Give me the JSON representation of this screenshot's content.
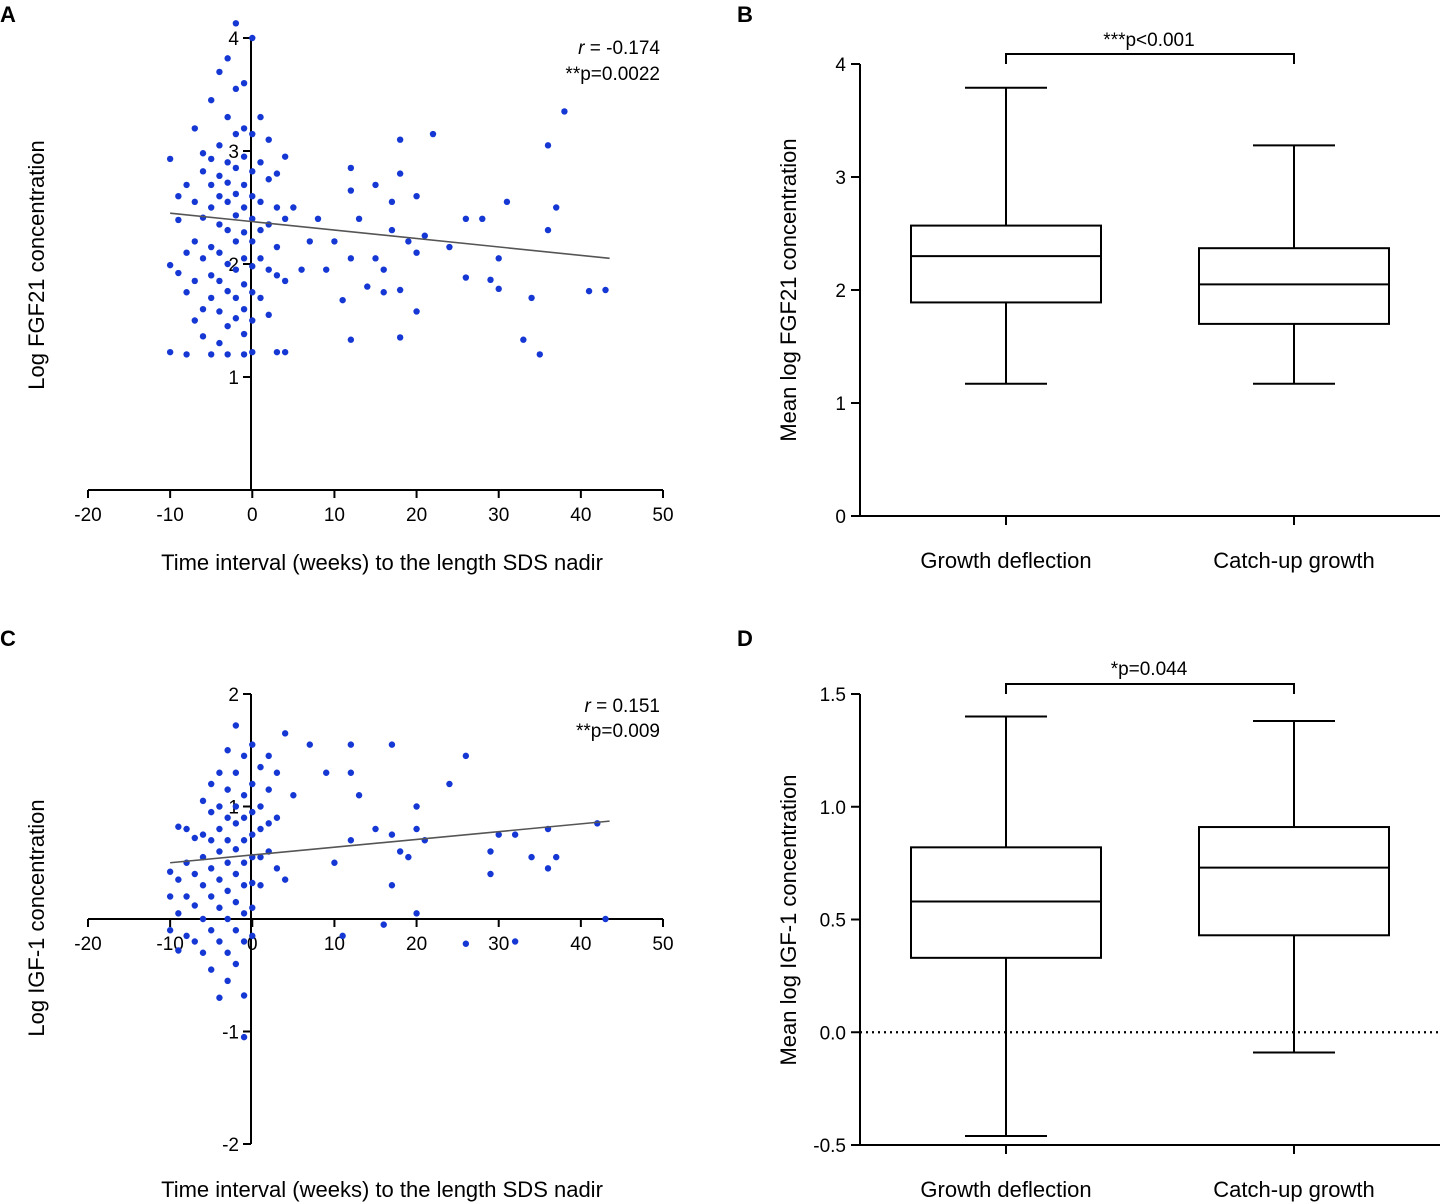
{
  "chart_data": [
    {
      "panel": "A",
      "type": "scatter",
      "xlabel": "Time interval (weeks) to the length SDS nadir",
      "ylabel": "Log FGF21 concentration",
      "xlim": [
        -20,
        50
      ],
      "ylim": [
        0,
        4
      ],
      "xticks": [
        "-20",
        "-10",
        "0",
        "10",
        "20",
        "30",
        "40",
        "50"
      ],
      "yticks": [
        "1",
        "2",
        "3",
        "4"
      ],
      "stat_r_symbol": "r",
      "stat_r_value": " = -0.174",
      "stat_p": "**p=0.0022",
      "regression": {
        "x1": -10,
        "y1": 2.45,
        "x2": 43.5,
        "y2": 2.05
      },
      "points": [
        [
          -10,
          2.93
        ],
        [
          -10,
          1.99
        ],
        [
          -10,
          1.22
        ],
        [
          -9,
          2.6
        ],
        [
          -9,
          2.39
        ],
        [
          -9,
          1.92
        ],
        [
          -8,
          2.7
        ],
        [
          -8,
          2.1
        ],
        [
          -8,
          1.75
        ],
        [
          -8,
          1.2
        ],
        [
          -7,
          3.2
        ],
        [
          -7,
          2.55
        ],
        [
          -7,
          2.2
        ],
        [
          -7,
          1.85
        ],
        [
          -7,
          1.5
        ],
        [
          -6,
          2.98
        ],
        [
          -6,
          2.82
        ],
        [
          -6,
          2.41
        ],
        [
          -6,
          2.05
        ],
        [
          -6,
          1.6
        ],
        [
          -6,
          1.36
        ],
        [
          -5,
          3.45
        ],
        [
          -5,
          2.93
        ],
        [
          -5,
          2.7
        ],
        [
          -5,
          2.5
        ],
        [
          -5,
          2.15
        ],
        [
          -5,
          1.9
        ],
        [
          -5,
          1.7
        ],
        [
          -5,
          1.2
        ],
        [
          -4,
          3.7
        ],
        [
          -4,
          3.05
        ],
        [
          -4,
          2.78
        ],
        [
          -4,
          2.6
        ],
        [
          -4,
          2.35
        ],
        [
          -4,
          2.1
        ],
        [
          -4,
          1.85
        ],
        [
          -4,
          1.58
        ],
        [
          -4,
          1.3
        ],
        [
          -3,
          3.82
        ],
        [
          -3,
          3.3
        ],
        [
          -3,
          2.9
        ],
        [
          -3,
          2.72
        ],
        [
          -3,
          2.55
        ],
        [
          -3,
          2.3
        ],
        [
          -3,
          2.0
        ],
        [
          -3,
          1.76
        ],
        [
          -3,
          1.45
        ],
        [
          -3,
          1.2
        ],
        [
          -2,
          4.13
        ],
        [
          -2,
          3.55
        ],
        [
          -2,
          3.15
        ],
        [
          -2,
          2.85
        ],
        [
          -2,
          2.62
        ],
        [
          -2,
          2.43
        ],
        [
          -2,
          2.2
        ],
        [
          -2,
          1.95
        ],
        [
          -2,
          1.7
        ],
        [
          -2,
          1.52
        ],
        [
          -1,
          3.6
        ],
        [
          -1,
          3.2
        ],
        [
          -1,
          2.95
        ],
        [
          -1,
          2.7
        ],
        [
          -1,
          2.5
        ],
        [
          -1,
          2.28
        ],
        [
          -1,
          2.05
        ],
        [
          -1,
          1.82
        ],
        [
          -1,
          1.6
        ],
        [
          -1,
          1.38
        ],
        [
          -1,
          1.2
        ],
        [
          0,
          4.0
        ],
        [
          0,
          3.15
        ],
        [
          0,
          2.82
        ],
        [
          0,
          2.6
        ],
        [
          0,
          2.4
        ],
        [
          0,
          2.2
        ],
        [
          0,
          1.98
        ],
        [
          0,
          1.75
        ],
        [
          0,
          1.5
        ],
        [
          0,
          1.22
        ],
        [
          1,
          3.3
        ],
        [
          1,
          2.9
        ],
        [
          1,
          2.55
        ],
        [
          1,
          2.3
        ],
        [
          1,
          2.05
        ],
        [
          1,
          1.7
        ],
        [
          2,
          3.1
        ],
        [
          2,
          2.75
        ],
        [
          2,
          2.35
        ],
        [
          2,
          1.95
        ],
        [
          2,
          1.55
        ],
        [
          3,
          2.8
        ],
        [
          3,
          2.5
        ],
        [
          3,
          2.15
        ],
        [
          3,
          1.9
        ],
        [
          3,
          1.22
        ],
        [
          4,
          2.95
        ],
        [
          4,
          2.4
        ],
        [
          4,
          1.85
        ],
        [
          4,
          1.22
        ],
        [
          5,
          2.5
        ],
        [
          6,
          1.95
        ],
        [
          7,
          2.2
        ],
        [
          8,
          2.4
        ],
        [
          9,
          1.95
        ],
        [
          10,
          2.2
        ],
        [
          11,
          1.68
        ],
        [
          12,
          2.85
        ],
        [
          12,
          2.65
        ],
        [
          12,
          2.05
        ],
        [
          12,
          1.33
        ],
        [
          13,
          2.4
        ],
        [
          14,
          1.8
        ],
        [
          15,
          2.7
        ],
        [
          15,
          2.05
        ],
        [
          16,
          1.95
        ],
        [
          16,
          1.75
        ],
        [
          17,
          2.55
        ],
        [
          17,
          2.3
        ],
        [
          18,
          3.1
        ],
        [
          18,
          2.8
        ],
        [
          18,
          1.77
        ],
        [
          18,
          1.35
        ],
        [
          19,
          2.2
        ],
        [
          20,
          2.6
        ],
        [
          20,
          2.1
        ],
        [
          20,
          1.58
        ],
        [
          21,
          2.25
        ],
        [
          22,
          3.15
        ],
        [
          24,
          2.15
        ],
        [
          26,
          2.4
        ],
        [
          26,
          1.88
        ],
        [
          28,
          2.4
        ],
        [
          29,
          1.86
        ],
        [
          30,
          2.05
        ],
        [
          30,
          1.78
        ],
        [
          31,
          2.55
        ],
        [
          33,
          1.33
        ],
        [
          34,
          1.7
        ],
        [
          35,
          1.2
        ],
        [
          36,
          2.3
        ],
        [
          36,
          3.05
        ],
        [
          37,
          2.5
        ],
        [
          38,
          3.35
        ],
        [
          41,
          1.76
        ],
        [
          43,
          1.77
        ]
      ]
    },
    {
      "panel": "B",
      "type": "box",
      "ylabel": "Mean log FGF21 concentration",
      "ylim": [
        0,
        4
      ],
      "yticks": [
        "0",
        "1",
        "2",
        "3",
        "4"
      ],
      "categories": [
        "Growth deflection",
        "Catch-up growth"
      ],
      "boxes": [
        {
          "min": 1.17,
          "q1": 1.89,
          "median": 2.3,
          "q3": 2.57,
          "max": 3.79
        },
        {
          "min": 1.17,
          "q1": 1.7,
          "median": 2.05,
          "q3": 2.37,
          "max": 3.28
        }
      ],
      "significance": "***p<0.001",
      "zero_line": false
    },
    {
      "panel": "C",
      "type": "scatter",
      "xlabel": "Time interval (weeks) to the length SDS nadir",
      "ylabel": "Log IGF-1 concentration",
      "xlim": [
        -20,
        50
      ],
      "ylim": [
        -2,
        2
      ],
      "xticks": [
        "-20",
        "-10",
        "0",
        "10",
        "20",
        "30",
        "40",
        "50"
      ],
      "yticks": [
        "-2",
        "-1",
        "1",
        "2"
      ],
      "stat_r_symbol": "r",
      "stat_r_value": " = 0.151",
      "stat_p": "**p=0.009",
      "regression": {
        "x1": -10,
        "y1": 0.5,
        "x2": 43.5,
        "y2": 0.87
      },
      "points": [
        [
          -10,
          0.42
        ],
        [
          -10,
          0.2
        ],
        [
          -10,
          -0.1
        ],
        [
          -9,
          0.82
        ],
        [
          -9,
          0.35
        ],
        [
          -9,
          0.05
        ],
        [
          -9,
          -0.28
        ],
        [
          -8,
          0.8
        ],
        [
          -8,
          0.5
        ],
        [
          -8,
          0.2
        ],
        [
          -8,
          -0.15
        ],
        [
          -7,
          0.72
        ],
        [
          -7,
          0.4
        ],
        [
          -7,
          0.12
        ],
        [
          -7,
          -0.2
        ],
        [
          -6,
          1.05
        ],
        [
          -6,
          0.75
        ],
        [
          -6,
          0.55
        ],
        [
          -6,
          0.3
        ],
        [
          -6,
          0.0
        ],
        [
          -6,
          -0.3
        ],
        [
          -5,
          1.2
        ],
        [
          -5,
          0.95
        ],
        [
          -5,
          0.7
        ],
        [
          -5,
          0.45
        ],
        [
          -5,
          0.2
        ],
        [
          -5,
          -0.1
        ],
        [
          -5,
          -0.45
        ],
        [
          -4,
          1.3
        ],
        [
          -4,
          1.0
        ],
        [
          -4,
          0.8
        ],
        [
          -4,
          0.6
        ],
        [
          -4,
          0.35
        ],
        [
          -4,
          0.1
        ],
        [
          -4,
          -0.2
        ],
        [
          -4,
          -0.7
        ],
        [
          -3,
          1.5
        ],
        [
          -3,
          1.15
        ],
        [
          -3,
          0.9
        ],
        [
          -3,
          0.7
        ],
        [
          -3,
          0.5
        ],
        [
          -3,
          0.25
        ],
        [
          -3,
          0.0
        ],
        [
          -3,
          -0.3
        ],
        [
          -3,
          -0.55
        ],
        [
          -2,
          1.72
        ],
        [
          -2,
          1.3
        ],
        [
          -2,
          1.0
        ],
        [
          -2,
          0.85
        ],
        [
          -2,
          0.62
        ],
        [
          -2,
          0.4
        ],
        [
          -2,
          0.15
        ],
        [
          -2,
          -0.1
        ],
        [
          -2,
          -0.4
        ],
        [
          -1,
          1.45
        ],
        [
          -1,
          1.1
        ],
        [
          -1,
          0.9
        ],
        [
          -1,
          0.7
        ],
        [
          -1,
          0.5
        ],
        [
          -1,
          0.3
        ],
        [
          -1,
          0.05
        ],
        [
          -1,
          -0.2
        ],
        [
          -1,
          -0.68
        ],
        [
          -1,
          -1.05
        ],
        [
          0,
          1.55
        ],
        [
          0,
          1.2
        ],
        [
          0,
          0.95
        ],
        [
          0,
          0.75
        ],
        [
          0,
          0.55
        ],
        [
          0,
          0.32
        ],
        [
          0,
          0.1
        ],
        [
          0,
          -0.15
        ],
        [
          1,
          1.35
        ],
        [
          1,
          1.0
        ],
        [
          1,
          0.8
        ],
        [
          1,
          0.55
        ],
        [
          1,
          0.3
        ],
        [
          2,
          1.45
        ],
        [
          2,
          1.15
        ],
        [
          2,
          0.85
        ],
        [
          2,
          0.6
        ],
        [
          3,
          1.3
        ],
        [
          3,
          0.9
        ],
        [
          3,
          0.45
        ],
        [
          4,
          1.65
        ],
        [
          4,
          0.35
        ],
        [
          5,
          1.1
        ],
        [
          7,
          1.55
        ],
        [
          9,
          1.3
        ],
        [
          10,
          0.5
        ],
        [
          11,
          -0.15
        ],
        [
          12,
          1.55
        ],
        [
          12,
          1.3
        ],
        [
          12,
          0.7
        ],
        [
          13,
          1.1
        ],
        [
          15,
          0.8
        ],
        [
          16,
          -0.05
        ],
        [
          17,
          1.55
        ],
        [
          17,
          0.75
        ],
        [
          17,
          0.3
        ],
        [
          18,
          0.6
        ],
        [
          19,
          0.55
        ],
        [
          20,
          1.0
        ],
        [
          20,
          0.8
        ],
        [
          20,
          0.05
        ],
        [
          21,
          0.7
        ],
        [
          24,
          1.2
        ],
        [
          26,
          1.45
        ],
        [
          26,
          -0.22
        ],
        [
          29,
          0.4
        ],
        [
          29,
          0.6
        ],
        [
          30,
          0.75
        ],
        [
          32,
          0.75
        ],
        [
          32,
          -0.2
        ],
        [
          34,
          0.55
        ],
        [
          36,
          0.45
        ],
        [
          36,
          0.8
        ],
        [
          37,
          0.55
        ],
        [
          42,
          0.85
        ],
        [
          43,
          0.0
        ]
      ]
    },
    {
      "panel": "D",
      "type": "box",
      "ylabel": "Mean log IGF-1 concentration",
      "ylim": [
        -0.5,
        1.5
      ],
      "yticks": [
        "-0.5",
        "0.0",
        "0.5",
        "1.0",
        "1.5"
      ],
      "categories": [
        "Growth deflection",
        "Catch-up growth"
      ],
      "boxes": [
        {
          "min": -0.46,
          "q1": 0.33,
          "median": 0.58,
          "q3": 0.82,
          "max": 1.4
        },
        {
          "min": -0.09,
          "q1": 0.43,
          "median": 0.73,
          "q3": 0.91,
          "max": 1.38
        }
      ],
      "significance": "*p=0.044",
      "zero_line": true
    }
  ]
}
